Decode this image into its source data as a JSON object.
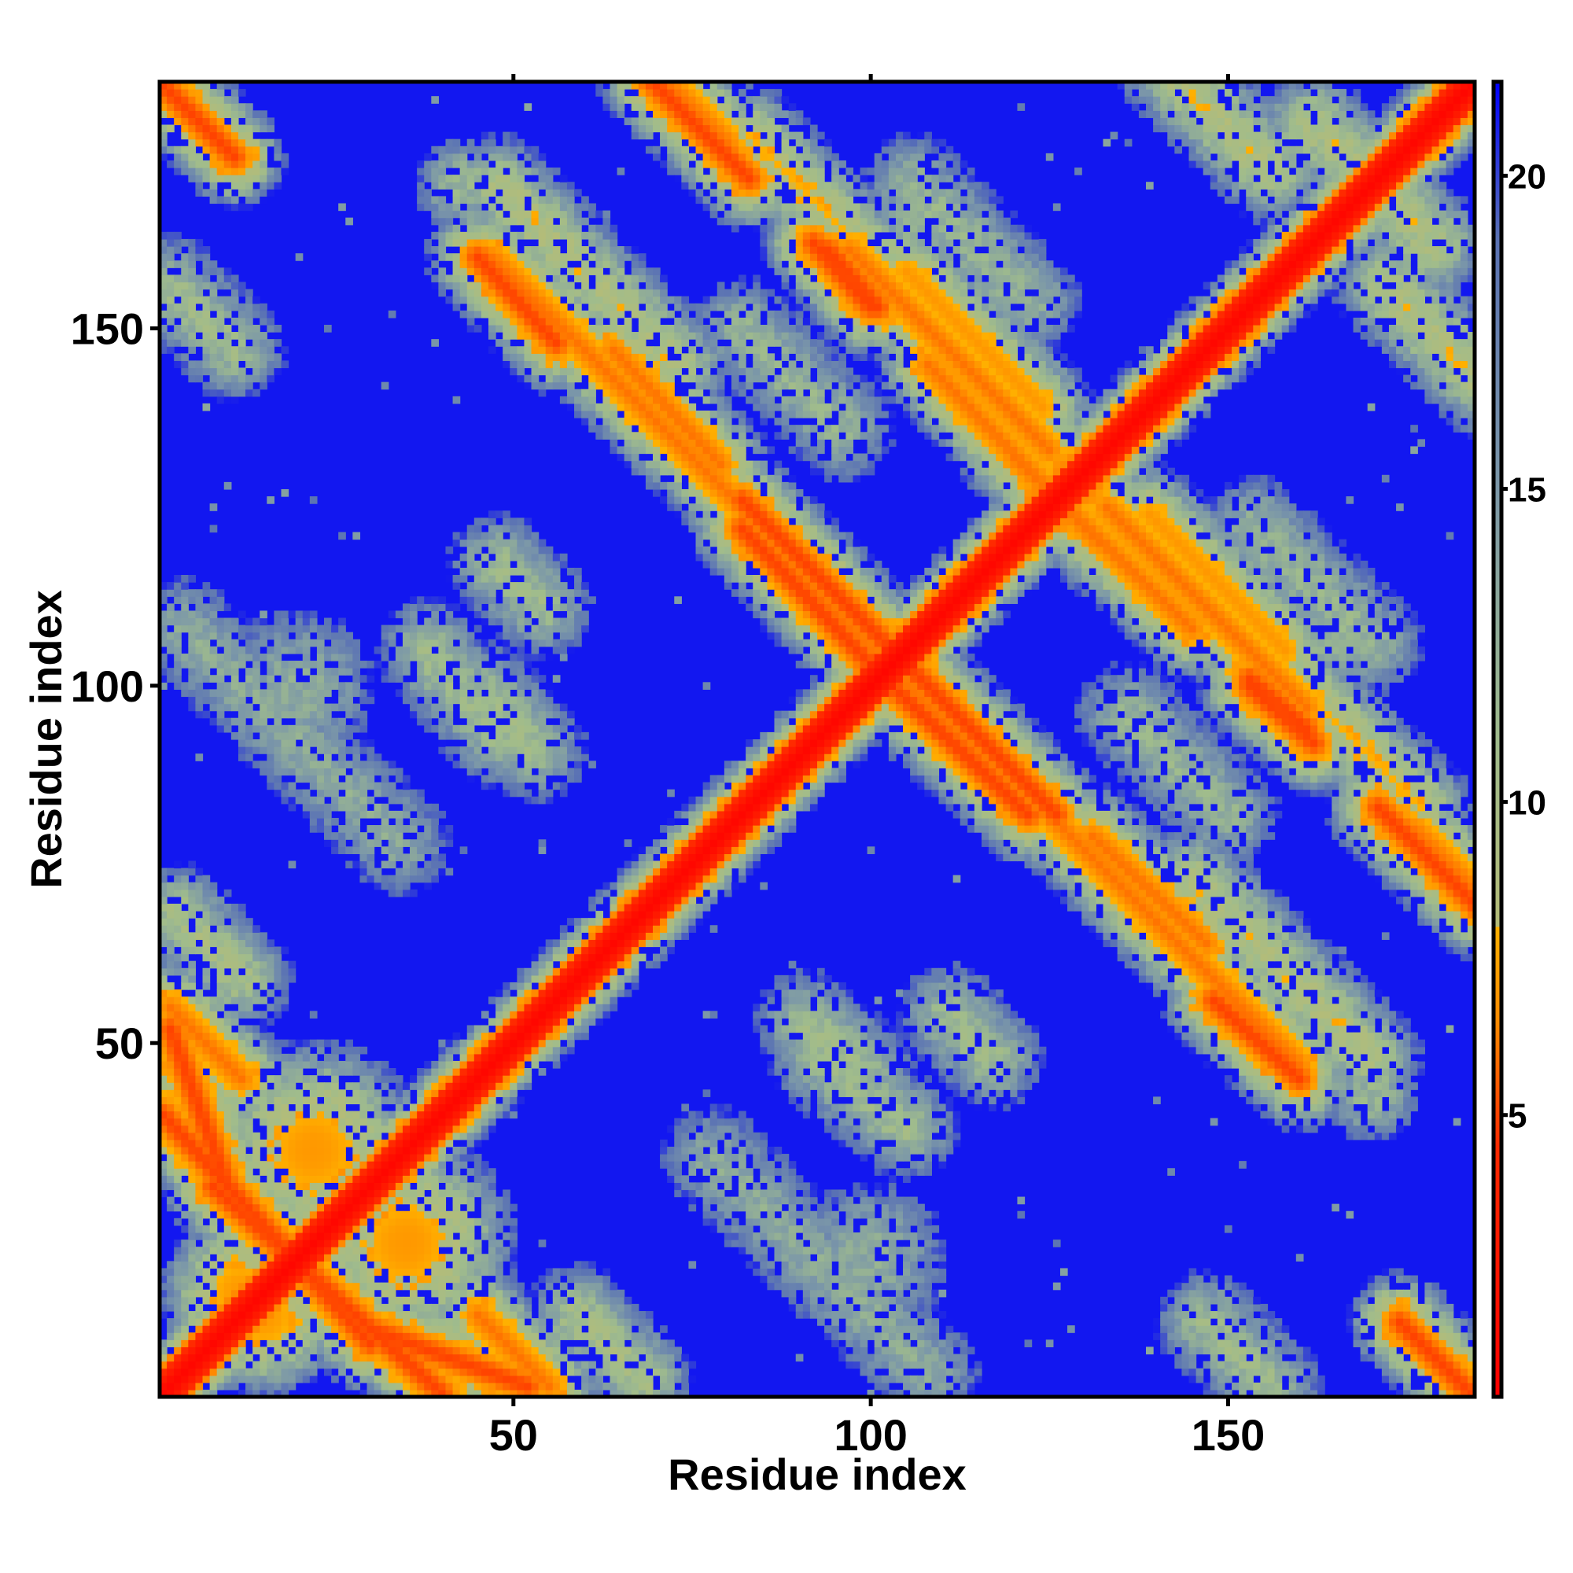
{
  "chart_data": {
    "type": "heatmap",
    "title": "",
    "xlabel": "Residue index",
    "ylabel": "Residue index",
    "xlim": [
      0.5,
      184.5
    ],
    "ylim": [
      0.5,
      184.5
    ],
    "n_residues": 184,
    "x_ticks": [
      50,
      100,
      150
    ],
    "y_ticks": [
      50,
      100,
      150
    ],
    "x_tick_labels": [
      "50",
      "100",
      "150"
    ],
    "y_tick_labels": [
      "50",
      "100",
      "150"
    ],
    "colorbar": {
      "range": [
        0.5,
        21.5
      ],
      "ticks": [
        5,
        10,
        15,
        20
      ],
      "tick_labels": [
        "5",
        "10",
        "15",
        "20"
      ],
      "stops": [
        {
          "value": 0.5,
          "color": "#ff0000"
        },
        {
          "value": 4.5,
          "color": "#ff2a00"
        },
        {
          "value": 6.5,
          "color": "#ff8c00"
        },
        {
          "value": 8.0,
          "color": "#ffb000"
        },
        {
          "value": 8.01,
          "color": "#b4bc78"
        },
        {
          "value": 11.0,
          "color": "#a0bc8c"
        },
        {
          "value": 15.0,
          "color": "#7c98a8"
        },
        {
          "value": 19.0,
          "color": "#5a72b4"
        },
        {
          "value": 21.5,
          "color": "#0000ff"
        }
      ]
    },
    "cap_value": 21,
    "diagonal_value": 1.2,
    "contact_bands": [
      {
        "from": [
          2,
          183
        ],
        "to": [
          11,
          174
        ],
        "min": 5
      },
      {
        "from": [
          2,
          156
        ],
        "to": [
          11,
          147
        ],
        "min": 11
      },
      {
        "from": [
          2,
          55
        ],
        "to": [
          12,
          45
        ],
        "min": 6
      },
      {
        "from": [
          3,
          68
        ],
        "to": [
          12,
          59
        ],
        "min": 10
      },
      {
        "from": [
          4,
          108
        ],
        "to": [
          34,
          78
        ],
        "min": 13
      },
      {
        "from": [
          8,
          30
        ],
        "to": [
          40,
          1
        ],
        "min": 5
      },
      {
        "from": [
          30,
          10
        ],
        "to": [
          52,
          2
        ],
        "min": 5
      },
      {
        "from": [
          48,
          170
        ],
        "to": [
          73,
          145
        ],
        "min": 9
      },
      {
        "from": [
          47,
          160
        ],
        "to": [
          85,
          122
        ],
        "min": 6
      },
      {
        "from": [
          69,
          185
        ],
        "to": [
          83,
          171
        ],
        "min": 5
      },
      {
        "from": [
          83,
          177
        ],
        "to": [
          109,
          151
        ],
        "min": 8
      },
      {
        "from": [
          92,
          162
        ],
        "to": [
          100,
          153
        ],
        "min": 5
      },
      {
        "from": [
          82,
          126
        ],
        "to": [
          102,
          106
        ],
        "min": 5
      },
      {
        "from": [
          103,
          100
        ],
        "to": [
          122,
          82
        ],
        "min": 5
      },
      {
        "from": [
          105,
          158
        ],
        "to": [
          124,
          139
        ],
        "min": 7
      },
      {
        "from": [
          108,
          145
        ],
        "to": [
          132,
          120
        ],
        "min": 6
      },
      {
        "from": [
          133,
          125
        ],
        "to": [
          161,
          97
        ],
        "min": 6
      },
      {
        "from": [
          131,
          79
        ],
        "to": [
          147,
          64
        ],
        "min": 6
      },
      {
        "from": [
          148,
          56
        ],
        "to": [
          160,
          45
        ],
        "min": 5
      },
      {
        "from": [
          153,
          101
        ],
        "to": [
          161,
          94
        ],
        "min": 5
      },
      {
        "from": [
          154,
          122
        ],
        "to": [
          170,
          106
        ],
        "min": 12
      },
      {
        "from": [
          176,
          80
        ],
        "to": [
          184,
          72
        ],
        "min": 6
      },
      {
        "from": [
          177,
          8
        ],
        "to": [
          184,
          1
        ],
        "min": 5
      },
      {
        "from": [
          142,
          186
        ],
        "to": [
          156,
          172
        ],
        "min": 9
      },
      {
        "from": [
          165,
          176
        ],
        "to": [
          174,
          167
        ],
        "min": 9
      },
      {
        "from": [
          136,
          96
        ],
        "to": [
          150,
          82
        ],
        "min": 12
      },
      {
        "from": [
          93,
          48
        ],
        "to": [
          105,
          38
        ],
        "min": 11
      },
      {
        "from": [
          48,
          117
        ],
        "to": [
          54,
          111
        ],
        "min": 11
      },
      {
        "from": [
          46,
          99
        ],
        "to": [
          53,
          91
        ],
        "min": 11
      }
    ],
    "contact_blobs": [
      {
        "center": [
          22,
          35
        ],
        "radius": 16,
        "min": 7
      },
      {
        "center": [
          15,
          12
        ],
        "radius": 12,
        "min": 7
      },
      {
        "center": [
          60,
          150
        ],
        "radius": 6,
        "min": 12
      },
      {
        "center": [
          107,
          165
        ],
        "radius": 7,
        "min": 12
      },
      {
        "center": [
          20,
          100
        ],
        "radius": 11,
        "min": 13
      },
      {
        "center": [
          100,
          20
        ],
        "radius": 11,
        "min": 13
      },
      {
        "center": [
          170,
          43
        ],
        "radius": 7,
        "min": 12
      },
      {
        "center": [
          162,
          178
        ],
        "radius": 8,
        "min": 10
      }
    ]
  }
}
